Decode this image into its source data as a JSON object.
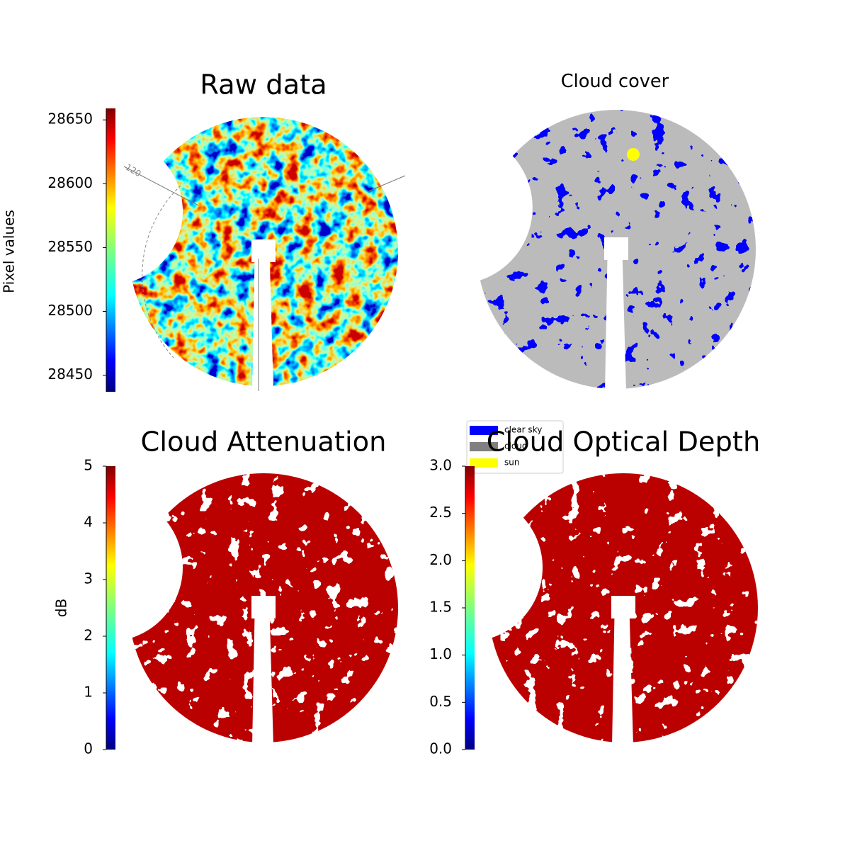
{
  "chart_data": [
    {
      "type": "image",
      "title": "Raw data",
      "ylabel": "Pixel values",
      "colormap": "jet",
      "ylim": [
        28437,
        28659
      ],
      "yticks": [
        28450,
        28500,
        28550,
        28600,
        28650
      ],
      "annotations": [
        "120"
      ]
    },
    {
      "type": "image",
      "title": "Cloud cover",
      "legend": [
        {
          "name": "clear sky",
          "color": "#0000ff"
        },
        {
          "name": "cloud",
          "color": "#808080"
        },
        {
          "name": "sun",
          "color": "#ffff00"
        }
      ]
    },
    {
      "type": "image",
      "title": "Cloud Attenuation",
      "ylabel": "dB",
      "colormap": "jet",
      "ylim": [
        0,
        5
      ],
      "yticks": [
        0,
        1,
        2,
        3,
        4,
        5
      ]
    },
    {
      "type": "image",
      "title": "Cloud Optical Depth",
      "colormap": "jet",
      "ylim": [
        0,
        3
      ],
      "yticks": [
        {
          "value": 0,
          "label": "0.0"
        },
        0.5,
        {
          "value": 1,
          "label": "1.0"
        },
        1.5,
        {
          "value": 2,
          "label": "2.0"
        },
        2.5,
        {
          "value": 3,
          "label": "3.0"
        }
      ]
    }
  ]
}
